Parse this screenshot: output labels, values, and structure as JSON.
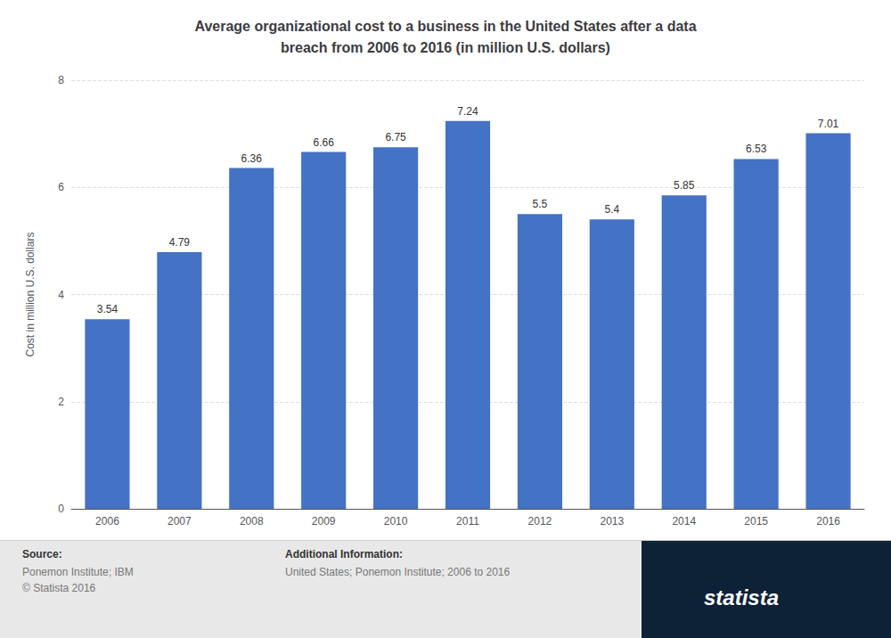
{
  "chart_data": {
    "type": "bar",
    "title": "Average organizational cost to a business in the United States after a data\nbreach from 2006 to 2016 (in million U.S. dollars)",
    "y_label": "Cost in million U.S. dollars",
    "categories": [
      "2006",
      "2007",
      "2008",
      "2009",
      "2010",
      "2011",
      "2012",
      "2013",
      "2014",
      "2015",
      "2016"
    ],
    "values": [
      3.54,
      4.79,
      6.36,
      6.66,
      6.75,
      7.24,
      5.5,
      5.4,
      5.85,
      6.53,
      7.01
    ],
    "color": "#4472c4",
    "ylim": [
      0,
      8
    ],
    "yticks": [
      0,
      2,
      4,
      6,
      8
    ],
    "grid": true,
    "data_labels": true,
    "annotations": [
      "Source:",
      "Ponemon Institute; IBM",
      "© Statista 2016",
      "Additional Information:",
      "United States; Ponemon Institute; 2006 to 2016",
      "statista"
    ]
  }
}
